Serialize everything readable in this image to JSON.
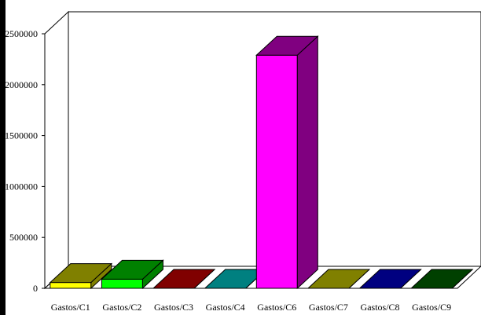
{
  "chart_data": {
    "type": "bar",
    "title": "",
    "xlabel": "",
    "ylabel": "",
    "categories": [
      "Gastos/C1",
      "Gastos/C2",
      "Gastos/C3",
      "Gastos/C4",
      "Gastos/C6",
      "Gastos/C7",
      "Gastos/C8",
      "Gastos/C9"
    ],
    "values": [
      57000,
      90000,
      0,
      0,
      2290000,
      0,
      0,
      0
    ],
    "y_tick_labels": [
      "0",
      "500000",
      "1000000",
      "1500000",
      "2000000",
      "2500000"
    ],
    "ylim": [
      0,
      2500000
    ],
    "grid": false,
    "legend": "none",
    "colors": {
      "front": [
        "#ffff00",
        "#00ff00",
        "#800000",
        "#008080",
        "#ff00ff",
        "#808000",
        "#000080",
        "#004000"
      ],
      "top": [
        "#808000",
        "#008000",
        "#800000",
        "#008080",
        "#800080",
        "#808000",
        "#000080",
        "#004000"
      ],
      "side": [
        "#808000",
        "#008000",
        "#800000",
        "#008080",
        "#800080",
        "#808000",
        "#000080",
        "#004000"
      ],
      "left_bar": "#000000"
    }
  }
}
